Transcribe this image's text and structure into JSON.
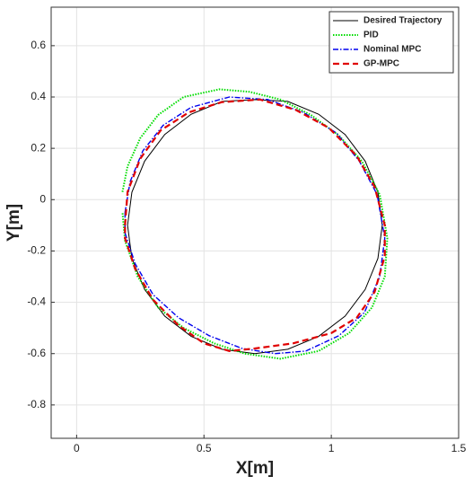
{
  "chart_data": {
    "type": "line",
    "xlabel": "X[m]",
    "ylabel": "Y[m]",
    "xlim": [
      -0.1,
      1.5
    ],
    "xticks": [
      0,
      0.5,
      1,
      1.5
    ],
    "ylim": [
      -0.93,
      0.75
    ],
    "yticks": [
      -0.8,
      -0.6,
      -0.4,
      -0.2,
      0,
      0.2,
      0.4,
      0.6
    ],
    "grid": true,
    "legend": "upper right",
    "series": [
      {
        "name": "Desired Trajectory",
        "color": "#000000",
        "style": "solid",
        "x": [
          1.2,
          1.183,
          1.133,
          1.054,
          0.95,
          0.829,
          0.7,
          0.571,
          0.45,
          0.346,
          0.267,
          0.217,
          0.2,
          0.217,
          0.267,
          0.346,
          0.45,
          0.571,
          0.7,
          0.829,
          0.95,
          1.054,
          1.133,
          1.183,
          1.2
        ],
        "values": [
          -0.1,
          0.029,
          0.15,
          0.254,
          0.333,
          0.383,
          0.39,
          0.383,
          0.333,
          0.254,
          0.15,
          0.029,
          -0.1,
          -0.229,
          -0.35,
          -0.454,
          -0.533,
          -0.583,
          -0.6,
          -0.583,
          -0.533,
          -0.454,
          -0.35,
          -0.229,
          -0.1
        ]
      },
      {
        "name": "PID",
        "color": "#00dd00",
        "style": "dotted",
        "x": [
          0.18,
          0.2,
          0.25,
          0.32,
          0.42,
          0.56,
          0.68,
          0.8,
          0.92,
          1.03,
          1.12,
          1.19,
          1.22,
          1.21,
          1.16,
          1.07,
          0.95,
          0.8,
          0.66,
          0.54,
          0.42,
          0.32,
          0.24,
          0.19,
          0.18
        ],
        "values": [
          0.03,
          0.13,
          0.24,
          0.33,
          0.4,
          0.43,
          0.42,
          0.39,
          0.33,
          0.25,
          0.15,
          0.02,
          -0.15,
          -0.3,
          -0.42,
          -0.52,
          -0.59,
          -0.62,
          -0.6,
          -0.56,
          -0.5,
          -0.42,
          -0.3,
          -0.16,
          -0.05
        ]
      },
      {
        "name": "Nominal MPC",
        "color": "#0000ee",
        "style": "dashdot",
        "x": [
          0.19,
          0.21,
          0.26,
          0.34,
          0.45,
          0.6,
          0.75,
          0.89,
          1.02,
          1.11,
          1.18,
          1.21,
          1.19,
          1.13,
          1.03,
          0.9,
          0.78,
          0.65,
          0.52,
          0.4,
          0.3,
          0.23,
          0.19,
          0.19
        ],
        "values": [
          -0.05,
          0.07,
          0.19,
          0.29,
          0.36,
          0.4,
          0.39,
          0.34,
          0.26,
          0.15,
          0.02,
          -0.15,
          -0.3,
          -0.44,
          -0.53,
          -0.59,
          -0.6,
          -0.58,
          -0.53,
          -0.46,
          -0.37,
          -0.25,
          -0.13,
          -0.05
        ]
      },
      {
        "name": "GP-MPC",
        "color": "#e00000",
        "style": "dashed",
        "x": [
          0.19,
          0.2,
          0.25,
          0.33,
          0.44,
          0.57,
          0.72,
          0.86,
          0.99,
          1.1,
          1.17,
          1.21,
          1.21,
          1.17,
          1.1,
          1.0,
          0.85,
          0.7,
          0.6,
          0.5,
          0.4,
          0.3,
          0.23,
          0.19,
          0.19
        ],
        "values": [
          -0.1,
          0.03,
          0.16,
          0.27,
          0.34,
          0.38,
          0.39,
          0.35,
          0.28,
          0.17,
          0.05,
          -0.1,
          -0.22,
          -0.36,
          -0.46,
          -0.52,
          -0.56,
          -0.58,
          -0.59,
          -0.56,
          -0.49,
          -0.39,
          -0.27,
          -0.15,
          -0.1
        ]
      }
    ]
  }
}
